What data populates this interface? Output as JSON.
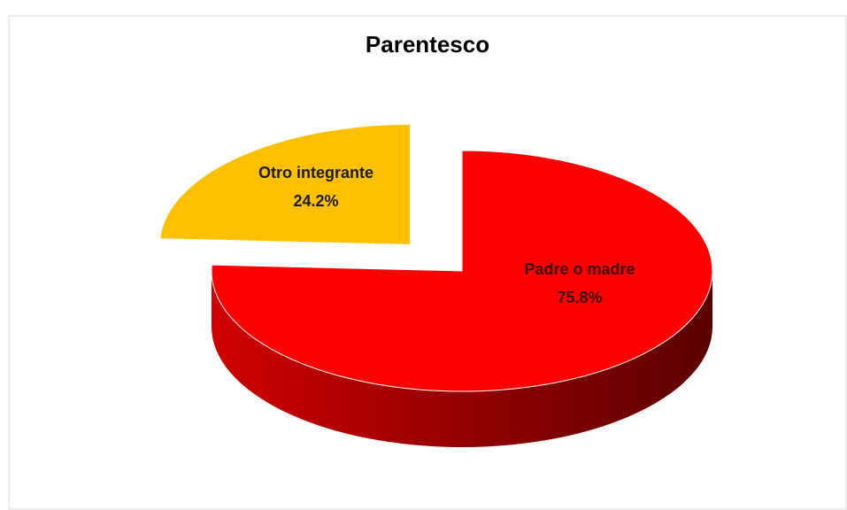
{
  "chart_data": {
    "type": "pie",
    "title": "Parentesco",
    "categories": [
      "Padre o madre",
      "Otro integrante"
    ],
    "values": [
      75.8,
      24.2
    ],
    "value_labels": [
      "75.8%",
      "24.2%"
    ],
    "colors": [
      "#ff0000",
      "#ffc000"
    ]
  }
}
